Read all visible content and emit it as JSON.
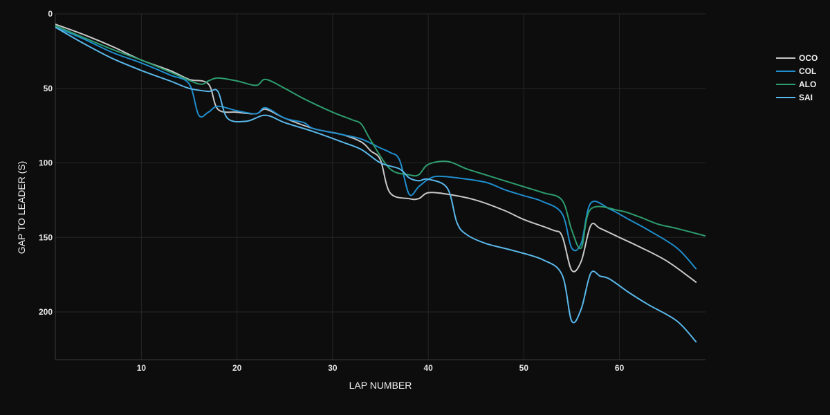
{
  "chart_data": {
    "type": "line",
    "title": "",
    "xlabel": "LAP NUMBER",
    "ylabel": "GAP TO LEADER (S)",
    "xlim": [
      1,
      69
    ],
    "ylim": [
      0,
      232
    ],
    "y_reversed": true,
    "xticks": [
      10,
      20,
      30,
      40,
      50,
      60
    ],
    "yticks": [
      0,
      50,
      100,
      150,
      200
    ],
    "grid": true,
    "legend_position": "top-right",
    "background": "#0d0d0d",
    "series": [
      {
        "name": "OCO",
        "color": "#c8c8c8",
        "points": [
          [
            1,
            7
          ],
          [
            4,
            14
          ],
          [
            7,
            22
          ],
          [
            10,
            31
          ],
          [
            13,
            38
          ],
          [
            15,
            44
          ],
          [
            17,
            47
          ],
          [
            18,
            64
          ],
          [
            20,
            66
          ],
          [
            22,
            67
          ],
          [
            23,
            64
          ],
          [
            25,
            70
          ],
          [
            28,
            77
          ],
          [
            31,
            81
          ],
          [
            33,
            86
          ],
          [
            34,
            92
          ],
          [
            35,
            98
          ],
          [
            36,
            120
          ],
          [
            38,
            124
          ],
          [
            39,
            124
          ],
          [
            40,
            120
          ],
          [
            42,
            121
          ],
          [
            45,
            125
          ],
          [
            48,
            132
          ],
          [
            50,
            138
          ],
          [
            53,
            145
          ],
          [
            54,
            149
          ],
          [
            55,
            172
          ],
          [
            56,
            166
          ],
          [
            57,
            142
          ],
          [
            58,
            144
          ],
          [
            60,
            150
          ],
          [
            62,
            156
          ],
          [
            65,
            166
          ],
          [
            68,
            180
          ]
        ]
      },
      {
        "name": "COL",
        "color": "#1f8fcf",
        "points": [
          [
            1,
            9
          ],
          [
            4,
            17
          ],
          [
            7,
            26
          ],
          [
            10,
            33
          ],
          [
            13,
            41
          ],
          [
            15,
            47
          ],
          [
            16,
            68
          ],
          [
            17,
            66
          ],
          [
            18,
            62
          ],
          [
            20,
            65
          ],
          [
            22,
            67
          ],
          [
            23,
            63
          ],
          [
            25,
            70
          ],
          [
            27,
            73
          ],
          [
            28,
            77
          ],
          [
            31,
            81
          ],
          [
            33,
            84
          ],
          [
            35,
            90
          ],
          [
            36,
            93
          ],
          [
            37,
            98
          ],
          [
            38,
            121
          ],
          [
            39,
            116
          ],
          [
            40,
            111
          ],
          [
            41,
            109
          ],
          [
            43,
            110
          ],
          [
            46,
            113
          ],
          [
            48,
            118
          ],
          [
            50,
            122
          ],
          [
            52,
            126
          ],
          [
            54,
            134
          ],
          [
            55,
            157
          ],
          [
            56,
            154
          ],
          [
            57,
            127
          ],
          [
            59,
            131
          ],
          [
            61,
            138
          ],
          [
            63,
            145
          ],
          [
            66,
            157
          ],
          [
            68,
            171
          ]
        ]
      },
      {
        "name": "ALO",
        "color": "#2e9d6f",
        "points": [
          [
            1,
            8
          ],
          [
            4,
            16
          ],
          [
            7,
            24
          ],
          [
            10,
            31
          ],
          [
            13,
            39
          ],
          [
            16,
            47
          ],
          [
            17,
            45
          ],
          [
            18,
            43
          ],
          [
            20,
            45
          ],
          [
            22,
            48
          ],
          [
            23,
            44
          ],
          [
            25,
            50
          ],
          [
            27,
            57
          ],
          [
            30,
            66
          ],
          [
            32,
            71
          ],
          [
            33,
            74
          ],
          [
            34,
            85
          ],
          [
            36,
            104
          ],
          [
            38,
            108
          ],
          [
            39,
            108
          ],
          [
            40,
            101
          ],
          [
            42,
            99
          ],
          [
            44,
            104
          ],
          [
            46,
            108
          ],
          [
            48,
            112
          ],
          [
            50,
            116
          ],
          [
            52,
            120
          ],
          [
            54,
            125
          ],
          [
            55,
            145
          ],
          [
            56,
            157
          ],
          [
            57,
            131
          ],
          [
            60,
            132
          ],
          [
            62,
            136
          ],
          [
            64,
            141
          ],
          [
            66,
            144
          ],
          [
            69,
            149
          ]
        ]
      },
      {
        "name": "SAI",
        "color": "#5ab8ea",
        "points": [
          [
            1,
            9
          ],
          [
            4,
            20
          ],
          [
            7,
            30
          ],
          [
            10,
            38
          ],
          [
            13,
            45
          ],
          [
            15,
            50
          ],
          [
            17,
            52
          ],
          [
            18,
            52
          ],
          [
            19,
            70
          ],
          [
            21,
            72
          ],
          [
            23,
            68
          ],
          [
            25,
            73
          ],
          [
            28,
            79
          ],
          [
            31,
            86
          ],
          [
            33,
            91
          ],
          [
            35,
            100
          ],
          [
            37,
            104
          ],
          [
            38,
            110
          ],
          [
            39,
            112
          ],
          [
            40,
            111
          ],
          [
            42,
            117
          ],
          [
            43,
            140
          ],
          [
            44,
            148
          ],
          [
            46,
            154
          ],
          [
            49,
            159
          ],
          [
            52,
            165
          ],
          [
            54,
            175
          ],
          [
            55,
            206
          ],
          [
            56,
            198
          ],
          [
            57,
            174
          ],
          [
            58,
            176
          ],
          [
            59,
            178
          ],
          [
            61,
            187
          ],
          [
            63,
            195
          ],
          [
            66,
            206
          ],
          [
            68,
            220
          ]
        ]
      }
    ]
  }
}
